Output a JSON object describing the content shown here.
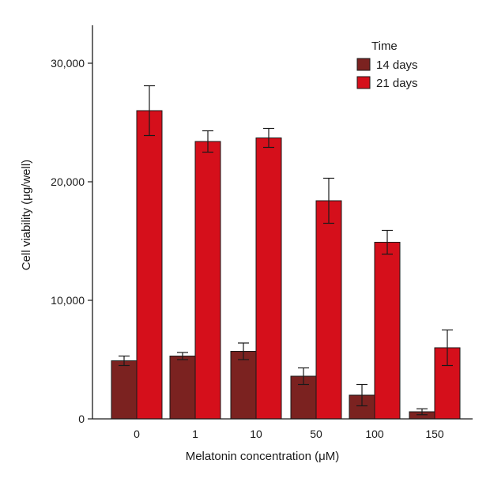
{
  "chart_data": {
    "type": "bar",
    "title": "",
    "xlabel": "Melatonin concentration (μM)",
    "ylabel": "Cell viability (μg/well)",
    "ylim": [
      0,
      33000
    ],
    "yticks": [
      0,
      10000,
      20000,
      30000
    ],
    "ytick_labels": [
      "0",
      "10,000",
      "20,000",
      "30,000"
    ],
    "categories": [
      "0",
      "1",
      "10",
      "50",
      "100",
      "150"
    ],
    "legend": {
      "title": "Time",
      "placement": "top-right"
    },
    "grid": false,
    "error_bars": true,
    "series": [
      {
        "name": "14 days",
        "color": "#7b2220",
        "values": [
          4900,
          5300,
          5700,
          3600,
          2000,
          600
        ],
        "errors": [
          400,
          300,
          700,
          700,
          900,
          250
        ]
      },
      {
        "name": "21 days",
        "color": "#d50f1b",
        "values": [
          26000,
          23400,
          23700,
          18400,
          14900,
          6000
        ],
        "errors": [
          2100,
          900,
          800,
          1900,
          1000,
          1500
        ]
      }
    ]
  }
}
